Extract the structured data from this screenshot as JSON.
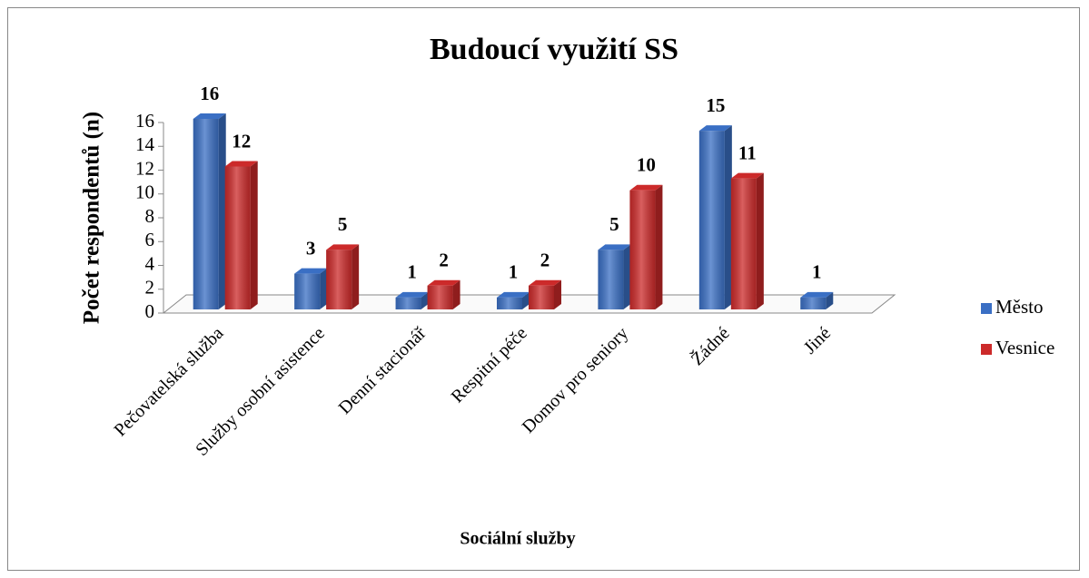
{
  "chart_data": {
    "type": "bar",
    "title": "Budoucí využití SS",
    "y_label": "Počet respondentů (n)",
    "x_label": "Sociální služby",
    "categories": [
      "Pečovatelská služba",
      "Služby osobní asistence",
      "Denní stacionář",
      "Respitní péče",
      "Domov pro seniory",
      "Žádné",
      "Jiné"
    ],
    "series": [
      {
        "name": "Město",
        "color": "#3a6fc4",
        "values": [
          16,
          3,
          1,
          1,
          5,
          15,
          1
        ]
      },
      {
        "name": "Vesnice",
        "color": "#cc2a2a",
        "values": [
          12,
          5,
          2,
          2,
          10,
          11,
          null
        ]
      }
    ],
    "ylim": [
      0,
      16
    ],
    "yticks": [
      0,
      2,
      4,
      6,
      8,
      10,
      12,
      14,
      16
    ],
    "legend": "right"
  }
}
